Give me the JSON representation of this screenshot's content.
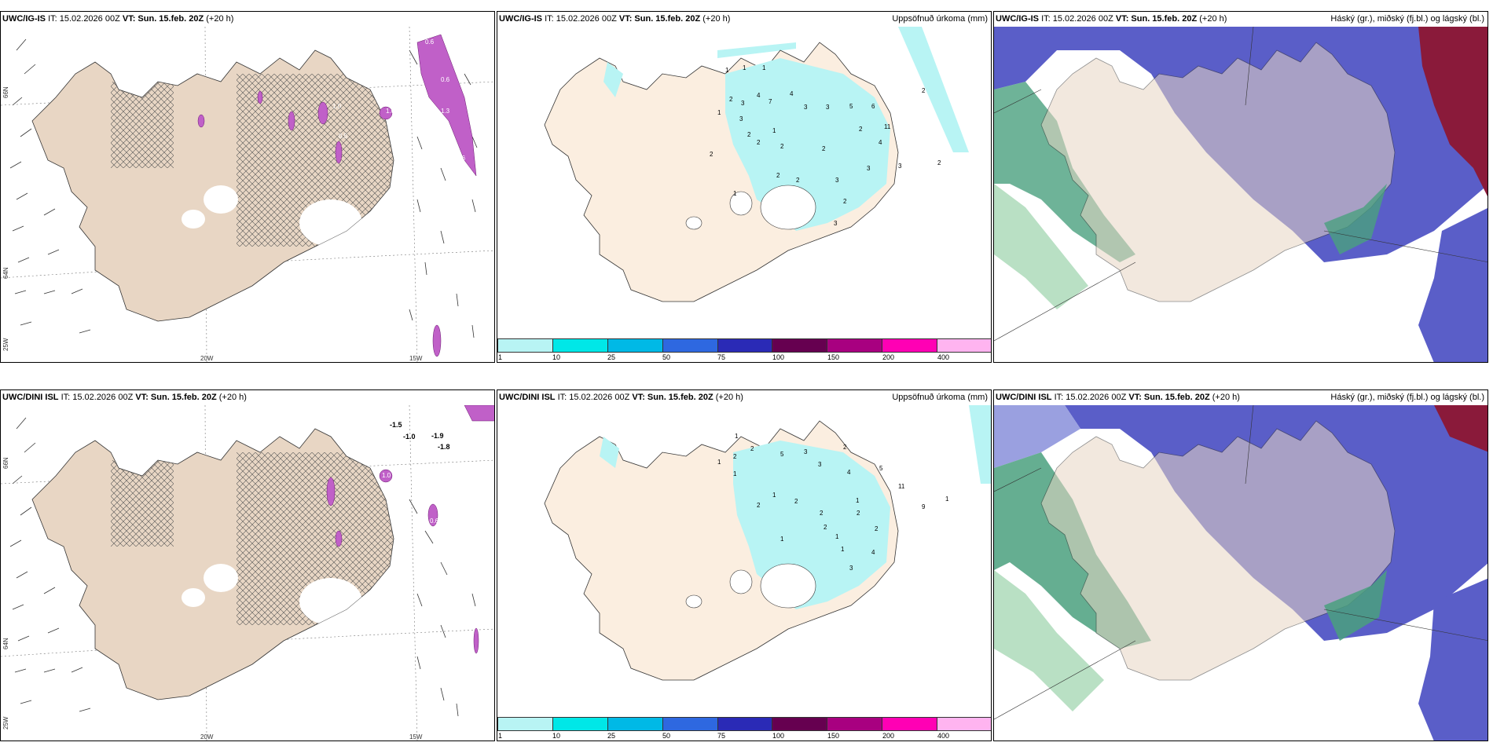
{
  "rows": [
    {
      "model": "UWC/IG-IS",
      "it_text": "IT: 15.02.2026 00Z",
      "vt_label": "VT: Sun. 15.feb. 20Z",
      "lead": "(+20 h)"
    },
    {
      "model": "UWC/DINI ISL",
      "it_text": "IT: 15.02.2026 00Z",
      "vt_label": "VT: Sun. 15.feb. 20Z",
      "lead": "(+20 h)"
    }
  ],
  "precip_title": "Uppsöfnuð úrkoma (mm)",
  "cloud_title": "Háský (gr.), miðský (fj.bl.) og lágský (bl.)",
  "axis": {
    "lat_66": "66N",
    "lat_64": "64N",
    "lon_25": "25W",
    "lon_20": "20W",
    "lon_15": "15W"
  },
  "colorbar": {
    "ticks": [
      "1",
      "10",
      "25",
      "50",
      "75",
      "100",
      "150",
      "200",
      "400"
    ],
    "colors": [
      "#b8f4f4",
      "#00e7e7",
      "#00b9e6",
      "#2e68e0",
      "#2a2ab6",
      "#660050",
      "#a80080",
      "#ff00b4",
      "#ffb4f0"
    ]
  },
  "land_color": "#e8d6c4",
  "precip_land_color": "#fbeee0",
  "precip_values_top": [
    "1",
    "1",
    "1",
    "2",
    "3",
    "1",
    "4",
    "7",
    "4",
    "3",
    "3",
    "5",
    "6",
    "2",
    "3",
    "2",
    "1",
    "2",
    "2",
    "2",
    "2",
    "2",
    "2",
    "3",
    "4",
    "11",
    "3",
    "2",
    "3",
    "2",
    "3",
    "2",
    "1"
  ],
  "precip_values_bottom": [
    "1",
    "2",
    "2",
    "5",
    "3",
    "3",
    "2",
    "4",
    "5",
    "1",
    "1",
    "11",
    "2",
    "1",
    "2",
    "2",
    "1",
    "2",
    "9",
    "2",
    "1",
    "1",
    "2",
    "1",
    "3",
    "4",
    "1"
  ],
  "wind_values_top": [
    "0.6",
    "0.8",
    "0.6",
    "1.0",
    "0.5",
    "1.3",
    "1.0",
    "1.6"
  ],
  "wind_values_bottom": [
    "-1.5",
    "-1.0",
    "-1.9",
    "-1.8",
    "1.0",
    "0.6"
  ]
}
